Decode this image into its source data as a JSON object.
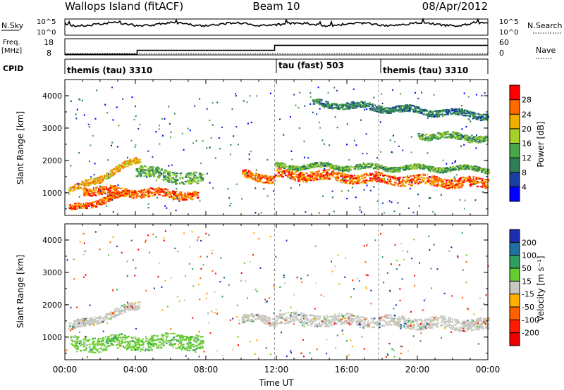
{
  "header": {
    "station": "Wallops Island (fitACF)",
    "beam": "Beam 10",
    "date": "08/Apr/2012"
  },
  "noise_panel": {
    "left_label": "N.Sky",
    "right_label": "N.Search",
    "left_ticks": [
      "10^5",
      "10^0"
    ],
    "right_ticks": [
      "10^5",
      "10^0"
    ]
  },
  "freq_panel": {
    "left_label_line1": "Freq.",
    "left_label_line2": "[MHz]",
    "right_label": "Nave",
    "left_ticks": [
      18,
      8
    ],
    "right_ticks": [
      60,
      0
    ],
    "freq_steps": [
      {
        "x": 0.0,
        "value": 9.2
      },
      {
        "x": 4.1,
        "value": 11.7
      },
      {
        "x": 11.9,
        "value": 14.8
      },
      {
        "x": 24.0,
        "value": 14.8
      }
    ]
  },
  "cpid_panel": {
    "label": "CPID",
    "modes": [
      {
        "label": "themis (tau) 3310",
        "start": 0.0,
        "end": 11.9
      },
      {
        "label": "tau (fast) 503",
        "start": 11.9,
        "end": 17.8
      },
      {
        "label": "themis (tau) 3310",
        "start": 17.8,
        "end": 24.0
      }
    ]
  },
  "chart_data": [
    {
      "type": "heatmap",
      "name": "power",
      "ylabel": "Slant Range [km]",
      "colorbar_label": "Power [dB]",
      "xlim": [
        0,
        24
      ],
      "ylim": [
        300,
        4500
      ],
      "y_ticks": [
        1000,
        2000,
        3000,
        4000
      ],
      "colorbar_ticks": [
        4,
        8,
        12,
        16,
        20,
        24,
        28
      ],
      "colorbar_range": [
        0,
        32
      ],
      "colors": [
        "#0000ff",
        "#1a3fa0",
        "#2e7f55",
        "#4aa64a",
        "#a8d02a",
        "#f0b000",
        "#ff6a00",
        "#ff0000"
      ],
      "bands": [
        {
          "x0": 0.2,
          "x1": 4.2,
          "y0": 1050,
          "y1": 2050,
          "thick": 200,
          "level": 22
        },
        {
          "x0": 0.2,
          "x1": 4.0,
          "y0": 520,
          "y1": 1050,
          "thick": 180,
          "level": 26
        },
        {
          "x0": 1.0,
          "x1": 7.5,
          "y0": 1100,
          "y1": 950,
          "thick": 250,
          "level": 27
        },
        {
          "x0": 4.0,
          "x1": 7.8,
          "y0": 1700,
          "y1": 1400,
          "thick": 350,
          "level": 13
        },
        {
          "x0": 10.0,
          "x1": 11.9,
          "y0": 1600,
          "y1": 1450,
          "thick": 250,
          "level": 24
        },
        {
          "x0": 11.9,
          "x1": 24.0,
          "y0": 1600,
          "y1": 1300,
          "thick": 300,
          "level": 26
        },
        {
          "x0": 11.9,
          "x1": 24.0,
          "y0": 1850,
          "y1": 1750,
          "thick": 150,
          "level": 14
        },
        {
          "x0": 14.0,
          "x1": 24.0,
          "y0": 3800,
          "y1": 3400,
          "thick": 200,
          "level": 9
        },
        {
          "x0": 20.0,
          "x1": 24.0,
          "y0": 2800,
          "y1": 2700,
          "thick": 200,
          "level": 12
        }
      ]
    },
    {
      "type": "heatmap",
      "name": "velocity",
      "xlabel": "Time UT",
      "ylabel": "Slant Range [km]",
      "colorbar_label": "Velocity [m s⁻¹]",
      "xlim": [
        0,
        24
      ],
      "ylim": [
        300,
        4500
      ],
      "x_ticks": [
        "00:00",
        "04:00",
        "08:00",
        "12:00",
        "16:00",
        "20:00",
        "00:00"
      ],
      "y_ticks": [
        1000,
        2000,
        3000,
        4000
      ],
      "colorbar_ticks": [
        "200",
        "100",
        "50",
        "15",
        "-15",
        "-50",
        "-100",
        "-200"
      ],
      "colors": [
        "#1a2fb0",
        "#1f6fa0",
        "#2f9f60",
        "#66cc33",
        "#c8c8c0",
        "#ffb000",
        "#ff6000",
        "#ff1a00",
        "#ee0000"
      ],
      "bands": [
        {
          "x0": 0.2,
          "x1": 4.2,
          "y0": 1300,
          "y1": 2000,
          "thick": 250,
          "level": "grey"
        },
        {
          "x0": 0.3,
          "x1": 7.8,
          "y0": 800,
          "y1": 900,
          "thick": 450,
          "level": "green"
        },
        {
          "x0": 10.0,
          "x1": 11.9,
          "y0": 1600,
          "y1": 1500,
          "thick": 250,
          "level": "grey"
        },
        {
          "x0": 11.9,
          "x1": 24.0,
          "y0": 1600,
          "y1": 1400,
          "thick": 350,
          "level": "grey"
        }
      ]
    }
  ]
}
